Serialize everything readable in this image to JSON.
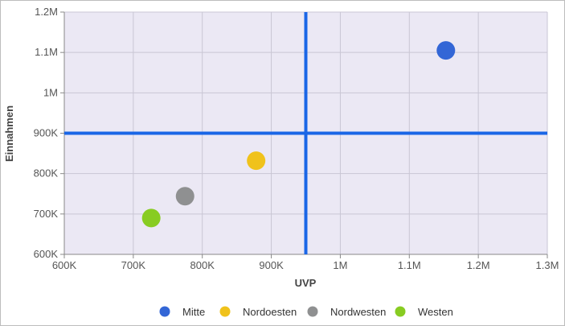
{
  "chart_data": {
    "type": "scatter",
    "title": "",
    "xlabel": "UVP",
    "ylabel": "Einnahmen",
    "xlim": [
      600000,
      1300000
    ],
    "ylim": [
      600000,
      1200000
    ],
    "x_ticks": [
      600000,
      700000,
      800000,
      900000,
      1000000,
      1100000,
      1200000,
      1300000
    ],
    "x_tick_labels": [
      "600K",
      "700K",
      "800K",
      "900K",
      "1M",
      "1.1M",
      "1.2M",
      "1.3M"
    ],
    "y_ticks": [
      600000,
      700000,
      800000,
      900000,
      1000000,
      1100000,
      1200000
    ],
    "y_tick_labels": [
      "600K",
      "700K",
      "800K",
      "900K",
      "1M",
      "1.1M",
      "1.2M"
    ],
    "grid": true,
    "reference_lines": {
      "x": 950000,
      "y": 900000,
      "color": "#1a66e6"
    },
    "legend_position": "bottom",
    "series": [
      {
        "name": "Mitte",
        "color": "#3366d6",
        "points": [
          {
            "x": 1153000,
            "y": 1105000
          }
        ]
      },
      {
        "name": "Nordoesten",
        "color": "#f0c21b",
        "points": [
          {
            "x": 878000,
            "y": 832000
          }
        ]
      },
      {
        "name": "Nordwesten",
        "color": "#8f9091",
        "points": [
          {
            "x": 775000,
            "y": 744000
          }
        ]
      },
      {
        "name": "Westen",
        "color": "#88cc22",
        "points": [
          {
            "x": 726000,
            "y": 690000
          }
        ]
      }
    ]
  }
}
